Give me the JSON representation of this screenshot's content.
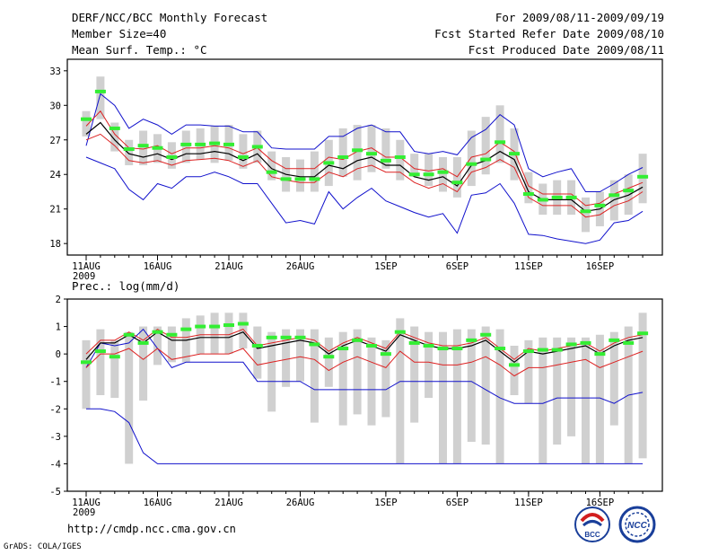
{
  "header": {
    "title": "DERF/NCC/BCC Monthly Forecast",
    "member_size": "Member Size=40",
    "variable": "Mean Surf. Temp.: °C",
    "period": "For 2009/08/11-2009/09/19",
    "fcst_started": "Fcst Started Refer Date 2009/08/10",
    "fcst_produced": "Fcst Produced Date 2009/08/11"
  },
  "footer": {
    "url": "http://cmdp.ncc.cma.gov.cn",
    "grads_credit": "GrADS: COLA/IGES",
    "logo_bcc": "BCC",
    "logo_ncc": "NCC"
  },
  "colors": {
    "bar": "#d0d0d0",
    "green": "#33ee33",
    "mean": "#000000",
    "spread": "#dd2222",
    "extreme": "#1111cc"
  },
  "chart_data": [
    {
      "type": "line",
      "title": "Mean Surf. Temp.: °C",
      "x": [
        1,
        2,
        3,
        4,
        5,
        6,
        7,
        8,
        9,
        10,
        11,
        12,
        13,
        14,
        15,
        16,
        17,
        18,
        19,
        20,
        21,
        22,
        23,
        24,
        25,
        26,
        27,
        28,
        29,
        30,
        31,
        32,
        33,
        34,
        35,
        36,
        37,
        38,
        39,
        40
      ],
      "x_ticks": [
        {
          "x": 1,
          "label": "11AUG"
        },
        {
          "x": 6,
          "label": "16AUG"
        },
        {
          "x": 11,
          "label": "21AUG"
        },
        {
          "x": 16,
          "label": "26AUG"
        },
        {
          "x": 22,
          "label": "1SEP"
        },
        {
          "x": 27,
          "label": "6SEP"
        },
        {
          "x": 32,
          "label": "11SEP"
        },
        {
          "x": 37,
          "label": "16SEP"
        }
      ],
      "x_year_label": "2009",
      "ylim": [
        17,
        34
      ],
      "y_ticks": [
        18,
        21,
        24,
        27,
        30,
        33
      ],
      "series": [
        {
          "name": "box",
          "low": [
            27.3,
            28.8,
            26.0,
            24.8,
            24.8,
            25.0,
            24.5,
            25.0,
            25.3,
            25.0,
            25.2,
            24.5,
            25.0,
            23.5,
            22.5,
            22.5,
            22.5,
            23.0,
            23.8,
            23.5,
            24.2,
            24.5,
            23.5,
            23.8,
            23.0,
            22.5,
            22.0,
            23.0,
            24.0,
            25.0,
            23.5,
            21.5,
            20.5,
            20.5,
            20.5,
            19.0,
            19.5,
            20.0,
            20.5,
            21.5
          ],
          "high": [
            29.5,
            32.5,
            28.5,
            27.0,
            27.8,
            27.5,
            26.8,
            27.8,
            28.0,
            28.2,
            28.3,
            27.5,
            27.8,
            26.0,
            25.5,
            25.3,
            26.0,
            27.0,
            28.0,
            28.3,
            28.3,
            28.0,
            27.0,
            25.8,
            25.8,
            25.5,
            25.5,
            27.8,
            29.0,
            30.0,
            28.0,
            24.2,
            23.2,
            23.5,
            23.5,
            22.0,
            22.5,
            23.5,
            24.0,
            25.8
          ]
        },
        {
          "name": "green",
          "values": [
            28.8,
            31.2,
            28.0,
            26.2,
            26.5,
            26.3,
            25.5,
            26.6,
            26.6,
            26.7,
            26.6,
            25.5,
            26.4,
            24.2,
            23.6,
            23.6,
            23.6,
            25.0,
            25.5,
            26.1,
            25.8,
            25.2,
            25.5,
            24.0,
            24.0,
            24.2,
            23.3,
            24.9,
            25.3,
            26.8,
            25.8,
            22.3,
            21.8,
            22.0,
            22.0,
            20.8,
            21.3,
            22.2,
            22.6,
            23.8
          ]
        },
        {
          "name": "mean",
          "values": [
            27.5,
            28.5,
            27.0,
            25.8,
            25.5,
            25.8,
            25.3,
            25.8,
            25.8,
            26.0,
            25.8,
            25.2,
            25.8,
            24.5,
            24.0,
            23.8,
            23.8,
            24.8,
            24.5,
            25.2,
            25.5,
            24.8,
            24.8,
            23.8,
            23.5,
            23.8,
            23.0,
            24.8,
            25.2,
            26.0,
            25.3,
            22.5,
            21.8,
            21.8,
            21.8,
            20.8,
            21.0,
            21.8,
            22.2,
            22.9
          ]
        },
        {
          "name": "upper",
          "values": [
            28.2,
            29.5,
            27.5,
            26.3,
            26.2,
            26.5,
            25.8,
            26.3,
            26.3,
            26.5,
            26.3,
            25.8,
            26.3,
            25.2,
            24.5,
            24.5,
            24.5,
            25.5,
            25.3,
            26.0,
            26.3,
            25.5,
            25.5,
            24.5,
            24.3,
            24.5,
            23.8,
            25.5,
            25.8,
            26.8,
            26.0,
            23.0,
            22.3,
            22.3,
            22.3,
            21.3,
            21.5,
            22.3,
            22.8,
            23.3
          ]
        },
        {
          "name": "lower",
          "values": [
            27.0,
            27.5,
            26.5,
            25.2,
            25.0,
            25.2,
            24.8,
            25.2,
            25.3,
            25.4,
            25.2,
            24.7,
            25.2,
            23.8,
            23.5,
            23.3,
            23.3,
            24.2,
            23.8,
            24.5,
            24.8,
            24.2,
            24.2,
            23.3,
            22.8,
            23.2,
            22.5,
            24.2,
            24.6,
            25.3,
            24.6,
            22.0,
            21.3,
            21.3,
            21.3,
            20.3,
            20.5,
            21.3,
            21.7,
            22.5
          ]
        },
        {
          "name": "max",
          "values": [
            25.5,
            25.0,
            24.5,
            22.7,
            21.8,
            23.2,
            22.8,
            23.8,
            23.8,
            24.2,
            23.8,
            23.2,
            23.2,
            21.5,
            19.8,
            20.0,
            19.7,
            22.5,
            21.0,
            22.0,
            22.8,
            21.7,
            21.2,
            20.7,
            20.3,
            20.6,
            18.9,
            22.2,
            22.4,
            23.2,
            21.5,
            18.8,
            18.7,
            18.4,
            18.2,
            18.0,
            18.3,
            19.8,
            20.0,
            20.8
          ]
        },
        {
          "name": "min",
          "values": [
            26.5,
            31.0,
            30.0,
            28.0,
            28.8,
            28.3,
            27.5,
            28.3,
            28.3,
            28.2,
            28.2,
            27.7,
            27.7,
            26.3,
            26.2,
            26.2,
            26.2,
            27.3,
            27.3,
            28.0,
            28.3,
            27.7,
            27.7,
            26.0,
            25.8,
            26.0,
            25.7,
            27.2,
            27.9,
            29.2,
            28.3,
            24.5,
            23.8,
            24.2,
            24.5,
            22.5,
            22.5,
            23.2,
            24.0,
            24.6
          ]
        }
      ]
    },
    {
      "type": "line",
      "title": "Prec.: log(mm/d)",
      "x": [
        1,
        2,
        3,
        4,
        5,
        6,
        7,
        8,
        9,
        10,
        11,
        12,
        13,
        14,
        15,
        16,
        17,
        18,
        19,
        20,
        21,
        22,
        23,
        24,
        25,
        26,
        27,
        28,
        29,
        30,
        31,
        32,
        33,
        34,
        35,
        36,
        37,
        38,
        39,
        40
      ],
      "x_ticks": [
        {
          "x": 1,
          "label": "11AUG"
        },
        {
          "x": 6,
          "label": "16AUG"
        },
        {
          "x": 11,
          "label": "21AUG"
        },
        {
          "x": 16,
          "label": "26AUG"
        },
        {
          "x": 22,
          "label": "1SEP"
        },
        {
          "x": 27,
          "label": "6SEP"
        },
        {
          "x": 32,
          "label": "11SEP"
        },
        {
          "x": 37,
          "label": "16SEP"
        }
      ],
      "x_year_label": "2009",
      "ylim": [
        -5,
        2
      ],
      "y_ticks": [
        -5,
        -4,
        -3,
        -2,
        -1,
        0,
        1,
        2
      ],
      "series": [
        {
          "name": "box",
          "low": [
            -2.0,
            -1.5,
            -1.6,
            -4.0,
            -1.7,
            -0.4,
            -0.3,
            -0.3,
            0.0,
            0.0,
            0.0,
            0.2,
            -0.9,
            -2.1,
            -1.2,
            -1.0,
            -2.5,
            -1.2,
            -2.6,
            -2.2,
            -2.6,
            -2.3,
            -4.0,
            -2.5,
            -1.6,
            -4.0,
            -4.0,
            -3.2,
            -3.3,
            -4.0,
            -1.5,
            -1.8,
            -4.0,
            -3.3,
            -3.0,
            -4.0,
            -4.0,
            -2.6,
            -4.0,
            -3.8
          ],
          "high": [
            0.5,
            0.9,
            0.5,
            0.8,
            1.0,
            1.0,
            1.0,
            1.3,
            1.4,
            1.5,
            1.5,
            1.5,
            1.0,
            0.8,
            0.9,
            0.9,
            0.9,
            0.6,
            0.8,
            0.9,
            0.6,
            0.5,
            1.3,
            1.0,
            0.8,
            0.8,
            0.9,
            0.9,
            1.0,
            0.9,
            0.3,
            0.5,
            0.6,
            0.6,
            0.6,
            0.6,
            0.7,
            0.8,
            1.0,
            1.5
          ]
        },
        {
          "name": "green",
          "values": [
            -0.3,
            0.1,
            -0.1,
            0.7,
            0.4,
            0.8,
            0.7,
            0.9,
            1.0,
            1.0,
            1.05,
            1.1,
            0.3,
            0.6,
            0.6,
            0.6,
            0.35,
            -0.1,
            0.2,
            0.5,
            0.3,
            0.0,
            0.8,
            0.4,
            0.3,
            0.2,
            0.2,
            0.5,
            0.7,
            0.2,
            -0.4,
            0.1,
            0.15,
            0.15,
            0.35,
            0.4,
            0.0,
            0.5,
            0.4,
            0.75
          ]
        },
        {
          "name": "mean",
          "values": [
            -0.2,
            0.4,
            0.4,
            0.7,
            0.4,
            0.8,
            0.5,
            0.5,
            0.6,
            0.6,
            0.6,
            0.8,
            0.2,
            0.3,
            0.4,
            0.5,
            0.4,
            0.0,
            0.3,
            0.5,
            0.3,
            0.1,
            0.7,
            0.5,
            0.3,
            0.2,
            0.2,
            0.3,
            0.5,
            0.1,
            -0.3,
            0.1,
            0.0,
            0.1,
            0.2,
            0.3,
            0.0,
            0.3,
            0.5,
            0.6
          ]
        },
        {
          "name": "upper",
          "values": [
            0.0,
            0.5,
            0.5,
            0.8,
            0.5,
            0.9,
            0.6,
            0.6,
            0.7,
            0.7,
            0.7,
            0.9,
            0.3,
            0.4,
            0.5,
            0.6,
            0.5,
            0.1,
            0.4,
            0.6,
            0.4,
            0.2,
            0.8,
            0.6,
            0.4,
            0.3,
            0.3,
            0.4,
            0.6,
            0.2,
            -0.2,
            0.2,
            0.1,
            0.2,
            0.3,
            0.4,
            0.1,
            0.4,
            0.6,
            0.7
          ]
        },
        {
          "name": "lower",
          "values": [
            -0.5,
            0.0,
            0.0,
            0.2,
            -0.2,
            0.2,
            -0.2,
            -0.1,
            0.0,
            0.0,
            0.0,
            0.2,
            -0.4,
            -0.3,
            -0.2,
            -0.1,
            -0.2,
            -0.6,
            -0.3,
            -0.1,
            -0.3,
            -0.5,
            0.1,
            -0.3,
            -0.3,
            -0.4,
            -0.4,
            -0.3,
            -0.1,
            -0.4,
            -0.8,
            -0.5,
            -0.5,
            -0.4,
            -0.3,
            -0.2,
            -0.5,
            -0.3,
            -0.1,
            0.1
          ]
        },
        {
          "name": "max",
          "values": [
            -2.0,
            -2.0,
            -2.1,
            -2.5,
            -3.6,
            -4.0,
            -4.0,
            -4.0,
            -4.0,
            -4.0,
            -4.0,
            -4.0,
            -4.0,
            -4.0,
            -4.0,
            -4.0,
            -4.0,
            -4.0,
            -4.0,
            -4.0,
            -4.0,
            -4.0,
            -4.0,
            -4.0,
            -4.0,
            -4.0,
            -4.0,
            -4.0,
            -4.0,
            -4.0,
            -4.0,
            -4.0,
            -4.0,
            -4.0,
            -4.0,
            -4.0,
            -4.0,
            -4.0,
            -4.0,
            -4.0
          ]
        },
        {
          "name": "min",
          "values": [
            -0.5,
            0.4,
            0.3,
            0.4,
            0.9,
            0.2,
            -0.5,
            -0.3,
            -0.3,
            -0.3,
            -0.3,
            -0.3,
            -1.0,
            -1.0,
            -1.0,
            -1.0,
            -1.3,
            -1.3,
            -1.3,
            -1.3,
            -1.3,
            -1.3,
            -1.0,
            -1.0,
            -1.0,
            -1.0,
            -1.0,
            -1.0,
            -1.3,
            -1.6,
            -1.8,
            -1.8,
            -1.8,
            -1.6,
            -1.6,
            -1.6,
            -1.6,
            -1.8,
            -1.5,
            -1.4
          ]
        }
      ]
    }
  ]
}
